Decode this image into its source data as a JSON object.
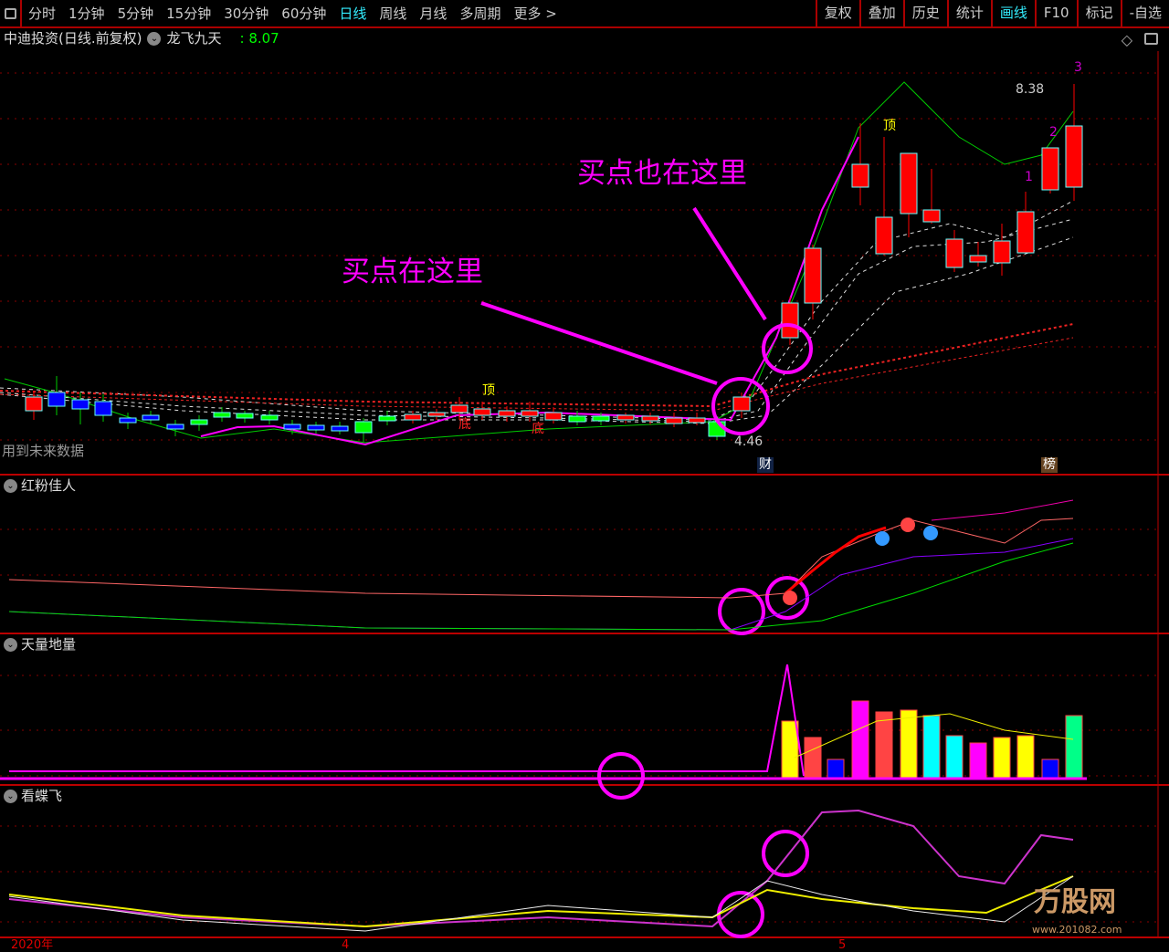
{
  "toolbar": {
    "periods": [
      "分时",
      "1分钟",
      "5分钟",
      "15分钟",
      "30分钟",
      "60分钟",
      "日线",
      "周线",
      "月线",
      "多周期",
      "更多 >"
    ],
    "active_period": "日线",
    "right": [
      "复权",
      "叠加",
      "历史",
      "统计",
      "画线",
      "F10",
      "标记",
      "-自选"
    ],
    "active_right": "画线"
  },
  "header": {
    "stock": "中迪投资(日线.前复权)",
    "indicator": "龙飞九天",
    "value": ": 8.07"
  },
  "main": {
    "annotation_1": "买点在这里",
    "annotation_2": "买点也在这里",
    "high_label": "8.38",
    "low_label": "4.46",
    "future_note": "用到未来数据",
    "top_marks": [
      "顶",
      "顶"
    ],
    "bottom_marks": [
      "底",
      "底"
    ],
    "wave_marks": [
      "1",
      "2",
      "3"
    ],
    "badge_cai": "财",
    "badge_bang": "榜"
  },
  "panels": [
    {
      "title": "红粉佳人"
    },
    {
      "title": "天量地量"
    },
    {
      "title": "看蝶飞"
    }
  ],
  "axis": {
    "labels": [
      "2020年",
      "4",
      "5"
    ]
  },
  "watermark": {
    "text": "万股网",
    "url": "www.201082.com"
  },
  "colors": {
    "up": "#ff0000",
    "down": "#0000ff",
    "accent": "#ff00ff",
    "active": "#33eeff",
    "ma": "#00cc00"
  }
}
